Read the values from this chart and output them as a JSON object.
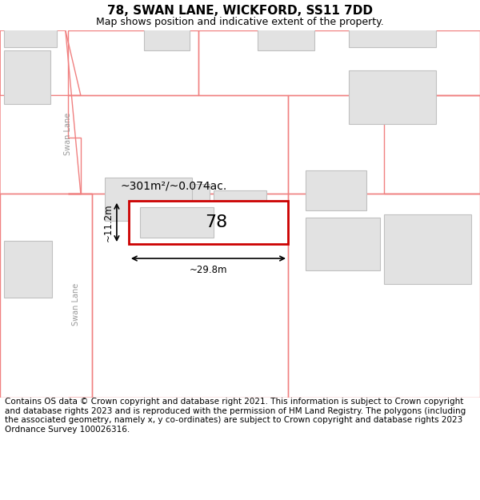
{
  "title": "78, SWAN LANE, WICKFORD, SS11 7DD",
  "subtitle": "Map shows position and indicative extent of the property.",
  "footer": "Contains OS data © Crown copyright and database right 2021. This information is subject to Crown copyright and database rights 2023 and is reproduced with the permission of HM Land Registry. The polygons (including the associated geometry, namely x, y co-ordinates) are subject to Crown copyright and database rights 2023 Ordnance Survey 100026316.",
  "background_color": "#ffffff",
  "map_bg": "#f0f0f0",
  "building_fill": "#e2e2e2",
  "building_edge": "#c0c0c0",
  "plot_edge": "#f08080",
  "highlight_edge": "#cc0000",
  "lane_label": "Swan Lane",
  "property_number": "78",
  "area_label": "~301m²/~0.074ac.",
  "width_label": "~29.8m",
  "height_label": "~11.2m",
  "title_fontsize": 11,
  "subtitle_fontsize": 9,
  "footer_fontsize": 7.5
}
